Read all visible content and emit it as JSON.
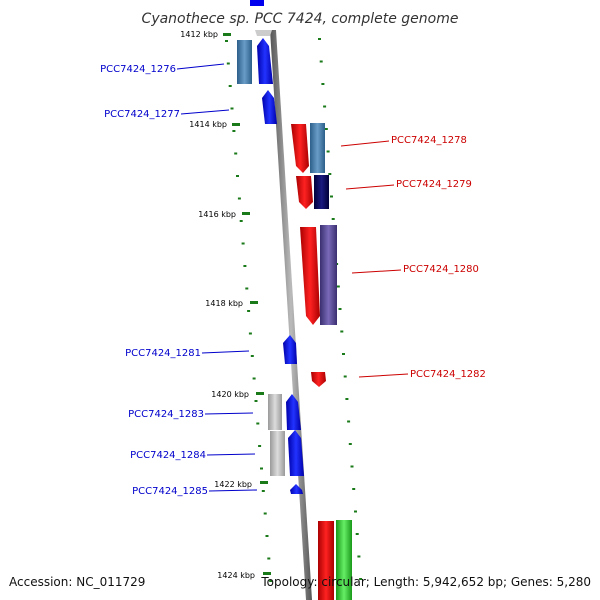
{
  "title": "Cyanothece sp. PCC 7424, complete genome",
  "accession_text": "Accession: NC_011729",
  "topology_text": "Topology: circular; Length: 5,942,652 bp; Genes: 5,280",
  "colors": {
    "forward_gene": "#0000ee",
    "reverse_gene": "#ee0000",
    "forward_label": "#0000cc",
    "reverse_label": "#cc0000",
    "tick": "#1a7a1a",
    "axis": "#888888"
  },
  "kbp_ticks": [
    {
      "label": "1412 kbp"
    },
    {
      "label": "1414 kbp"
    },
    {
      "label": "1416 kbp"
    },
    {
      "label": "1418 kbp"
    },
    {
      "label": "1420 kbp"
    },
    {
      "label": "1422 kbp"
    },
    {
      "label": "1424 kbp"
    }
  ],
  "forward_genes": [
    {
      "label": "PCC7424_1276"
    },
    {
      "label": "PCC7424_1277"
    },
    {
      "label": "PCC7424_1281"
    },
    {
      "label": "PCC7424_1283"
    },
    {
      "label": "PCC7424_1284"
    },
    {
      "label": "PCC7424_1285"
    }
  ],
  "reverse_genes": [
    {
      "label": "PCC7424_1278"
    },
    {
      "label": "PCC7424_1279"
    },
    {
      "label": "PCC7424_1280"
    },
    {
      "label": "PCC7424_1282"
    }
  ]
}
